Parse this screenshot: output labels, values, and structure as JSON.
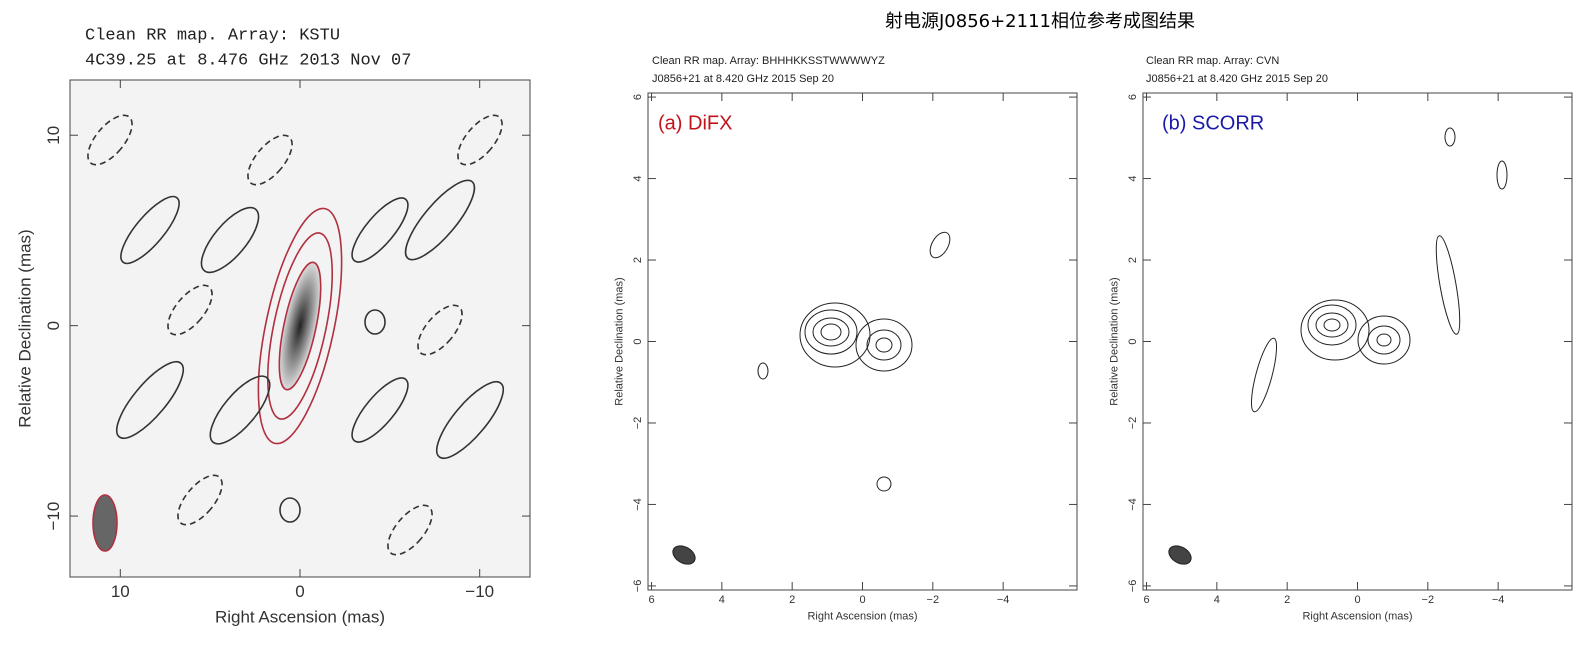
{
  "title": "射电源J0856+2111相位参考成图结果",
  "chart_data": [
    {
      "type": "contour",
      "header": [
        "Clean RR map.  Array:  KSTU",
        "4C39.25 at 8.476 GHz 2013 Nov 07"
      ],
      "x_label": "Right Ascension  (mas)",
      "y_label": "Relative Declination  (mas)",
      "xlim": [
        12.8,
        -12.8
      ],
      "ylim": [
        -13.2,
        12.9
      ],
      "xticks": [
        10,
        0,
        {
          "value": -10,
          "label": "−10"
        }
      ],
      "yticks": [
        10,
        0,
        {
          "value": -10,
          "label": "−10"
        }
      ]
    },
    {
      "type": "contour",
      "label": "(a) DiFX",
      "header": [
        "Clean RR map.  Array:  BHHHKKSSTWWWWYZ",
        "J0856+21 at 8.420 GHz 2015 Sep 20"
      ],
      "x_label": "Right Ascension  (mas)",
      "y_label": "Relative Declination  (mas)",
      "xlim": [
        6.1,
        -6.1
      ],
      "ylim": [
        -6.1,
        6.1
      ],
      "xticks": [
        6,
        4,
        2,
        0,
        {
          "value": -2,
          "label": "−2"
        },
        {
          "value": -4,
          "label": "−4"
        }
      ],
      "yticks": [
        6,
        4,
        2,
        0,
        {
          "value": -2,
          "label": "−2"
        },
        {
          "value": -4,
          "label": "−4"
        },
        {
          "value": -6,
          "label": "−6"
        }
      ]
    },
    {
      "type": "contour",
      "label": "(b) SCORR",
      "header": [
        "Clean RR map.  Array:  CVN",
        "J0856+21 at 8.420 GHz 2015 Sep 20"
      ],
      "x_label": "Right Ascension  (mas)",
      "y_label": "Relative Declination  (mas)",
      "xlim": [
        6.1,
        -6.1
      ],
      "ylim": [
        -6.1,
        6.1
      ],
      "xticks": [
        6,
        4,
        2,
        0,
        {
          "value": -2,
          "label": "−2"
        },
        {
          "value": -4,
          "label": "−4"
        }
      ],
      "yticks": [
        6,
        4,
        2,
        0,
        {
          "value": -2,
          "label": "−2"
        },
        {
          "value": -4,
          "label": "−4"
        },
        {
          "value": -6,
          "label": "−6"
        }
      ]
    }
  ]
}
